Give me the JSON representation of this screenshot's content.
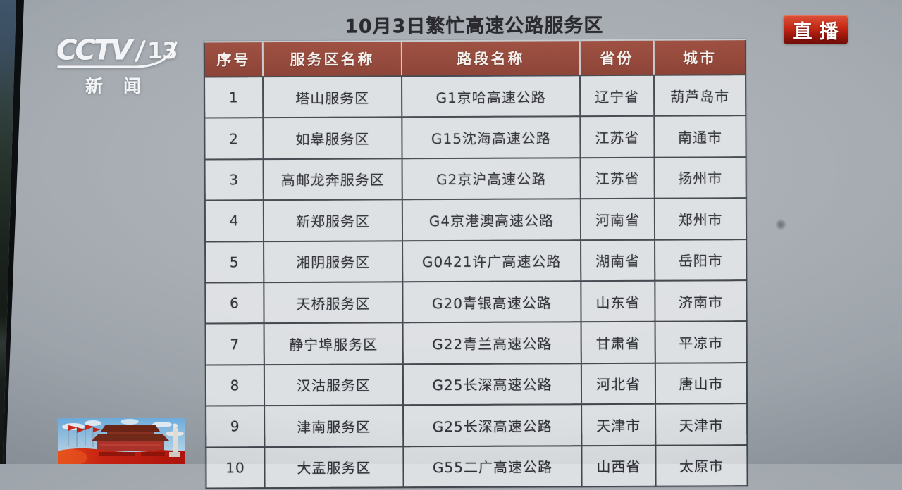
{
  "channel_bug": {
    "name": "CCTV",
    "number": "13",
    "subtitle": "新闻"
  },
  "live_badge": {
    "label": "直播"
  },
  "chart_data": {
    "type": "table",
    "title": "10月3日繁忙高速公路服务区",
    "columns": [
      "序号",
      "服务区名称",
      "路段名称",
      "省份",
      "城市"
    ],
    "rows": [
      [
        "1",
        "塔山服务区",
        "G1京哈高速公路",
        "辽宁省",
        "葫芦岛市"
      ],
      [
        "2",
        "如皋服务区",
        "G15沈海高速公路",
        "江苏省",
        "南通市"
      ],
      [
        "3",
        "高邮龙奔服务区",
        "G2京沪高速公路",
        "江苏省",
        "扬州市"
      ],
      [
        "4",
        "新郑服务区",
        "G4京港澳高速公路",
        "河南省",
        "郑州市"
      ],
      [
        "5",
        "湘阴服务区",
        "G0421许广高速公路",
        "湖南省",
        "岳阳市"
      ],
      [
        "6",
        "天桥服务区",
        "G20青银高速公路",
        "山东省",
        "济南市"
      ],
      [
        "7",
        "静宁埠服务区",
        "G22青兰高速公路",
        "甘肃省",
        "平凉市"
      ],
      [
        "8",
        "汉沽服务区",
        "G25长深高速公路",
        "河北省",
        "唐山市"
      ],
      [
        "9",
        "津南服务区",
        "G25长深高速公路",
        "天津市",
        "天津市"
      ],
      [
        "10",
        "大盂服务区",
        "G55二广高速公路",
        "山西省",
        "太原市"
      ]
    ]
  },
  "colors": {
    "screen_bg": "#a5abb1",
    "screen_bg_light": "#aeb4b9",
    "cell_bg": "#dde0e3",
    "cell_text": "#303138",
    "grid_border": "#42474d",
    "header_bg": "#9d4e3f",
    "header_bg_bottom": "#8a4033",
    "title_text": "#26262b",
    "live_top": "#dd5038",
    "live_bottom": "#6e0b04"
  }
}
